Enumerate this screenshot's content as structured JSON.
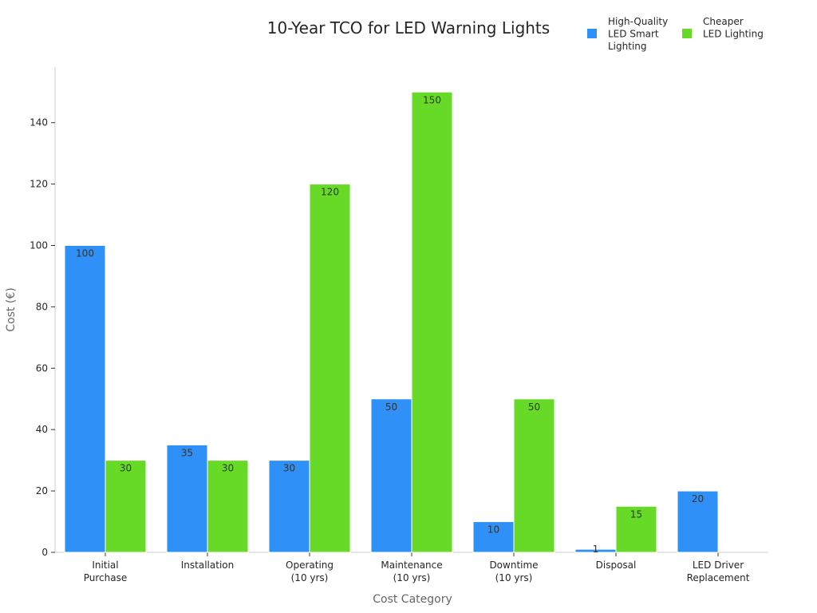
{
  "chart_data": {
    "type": "bar",
    "title": "10-Year TCO for LED Warning Lights",
    "xlabel": "Cost Category",
    "ylabel": "Cost (€)",
    "categories": [
      [
        "Initial",
        "Purchase"
      ],
      [
        "Installation"
      ],
      [
        "Operating",
        "(10 yrs)"
      ],
      [
        "Maintenance",
        "(10 yrs)"
      ],
      [
        "Downtime",
        "(10 yrs)"
      ],
      [
        "Disposal"
      ],
      [
        "LED Driver",
        "Replacement"
      ]
    ],
    "series": [
      {
        "name": [
          "High-Quality",
          "LED Smart",
          "Lighting"
        ],
        "color": "#2f90f7",
        "values": [
          100,
          35,
          30,
          50,
          10,
          1,
          20
        ],
        "labels": [
          "100",
          "35",
          "30",
          "50",
          "10",
          "1",
          "20"
        ]
      },
      {
        "name": [
          "Cheaper",
          "LED Lighting"
        ],
        "color": "#66da26",
        "values": [
          30,
          30,
          120,
          150,
          50,
          15,
          0
        ],
        "labels": [
          "30",
          "30",
          "120",
          "150",
          "50",
          "15",
          ""
        ]
      }
    ],
    "ylim": [
      0,
      158
    ],
    "yticks": [
      0,
      20,
      40,
      60,
      80,
      100,
      120,
      140
    ],
    "grid": false,
    "legend_position": "top-right"
  }
}
